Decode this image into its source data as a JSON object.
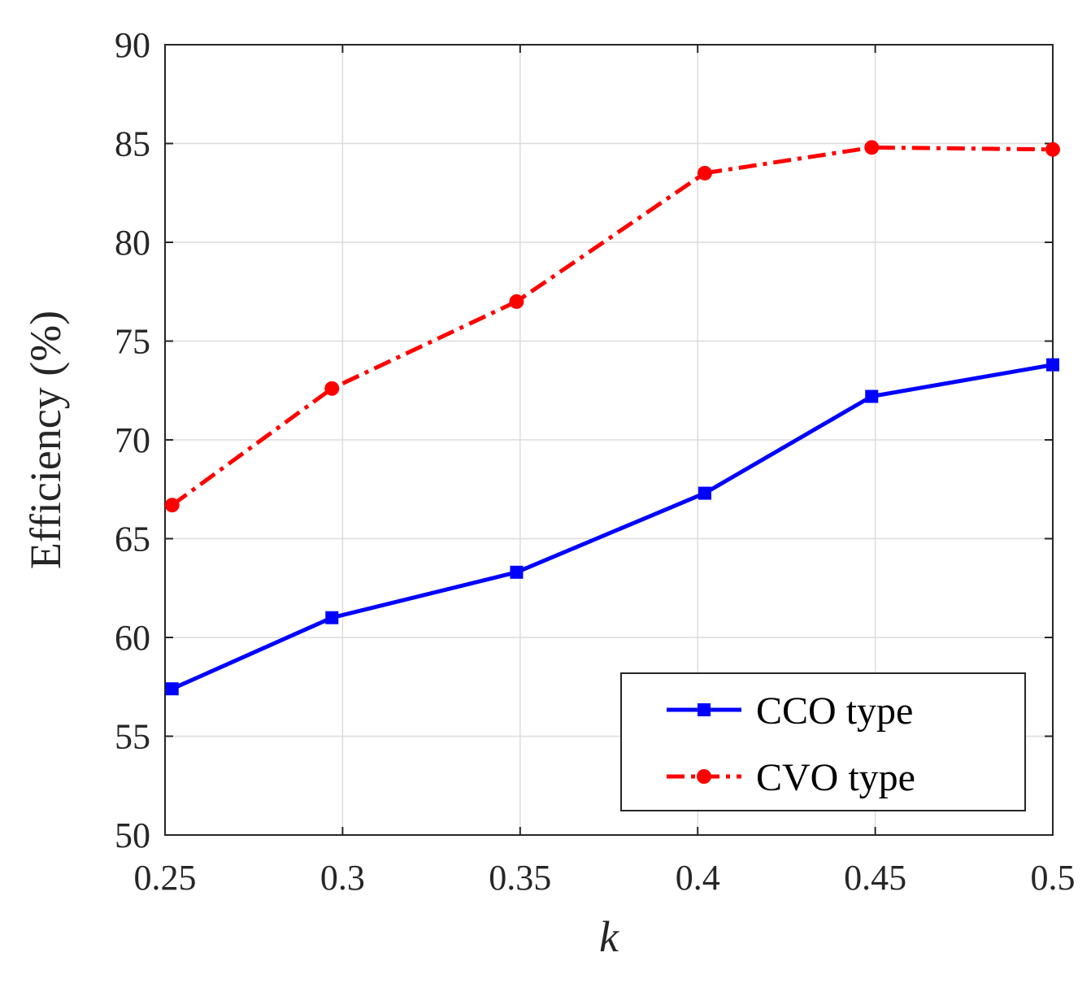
{
  "chart_data": {
    "type": "line",
    "title": "",
    "xlabel": "k",
    "ylabel": "Efficiency (%)",
    "xlim": [
      0.25,
      0.5
    ],
    "ylim": [
      50,
      90
    ],
    "xticks": [
      0.25,
      0.3,
      0.35,
      0.4,
      0.45,
      0.5
    ],
    "xtick_labels": [
      "0.25",
      "0.3",
      "0.35",
      "0.4",
      "0.45",
      "0.5"
    ],
    "yticks": [
      50,
      55,
      60,
      65,
      70,
      75,
      80,
      85,
      90
    ],
    "ytick_labels": [
      "50",
      "55",
      "60",
      "65",
      "70",
      "75",
      "80",
      "85",
      "90"
    ],
    "grid": true,
    "legend_position": "bottom-right",
    "series": [
      {
        "name": "CCO type",
        "color": "#0000ff",
        "line_style": "solid",
        "marker": "square",
        "x": [
          0.252,
          0.297,
          0.349,
          0.402,
          0.449,
          0.5
        ],
        "values": [
          57.4,
          61.0,
          63.3,
          67.3,
          72.2,
          73.8
        ]
      },
      {
        "name": "CVO type",
        "color": "#ff0000",
        "line_style": "dash-dot",
        "marker": "circle",
        "x": [
          0.252,
          0.297,
          0.349,
          0.402,
          0.449,
          0.5
        ],
        "values": [
          66.7,
          72.6,
          77.0,
          83.5,
          84.8,
          84.7
        ]
      }
    ]
  }
}
